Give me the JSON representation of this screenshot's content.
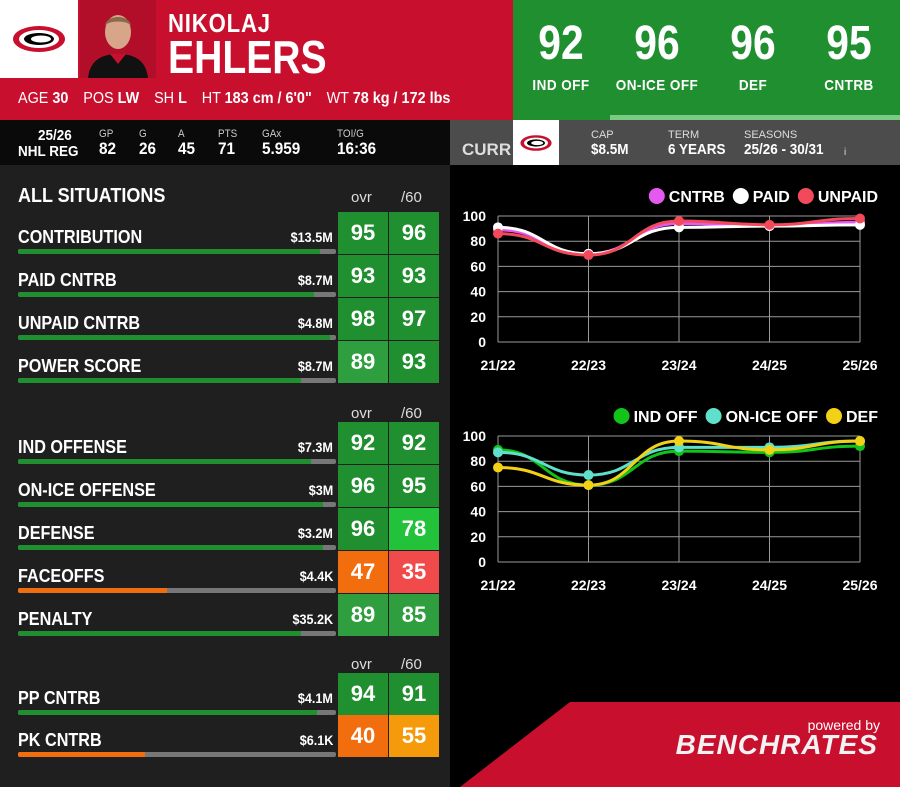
{
  "player": {
    "first_name": "NIKOLAJ",
    "last_name": "EHLERS",
    "bio": [
      {
        "label": "AGE",
        "value": "30"
      },
      {
        "label": "POS",
        "value": "LW"
      },
      {
        "label": "SH",
        "value": "L"
      },
      {
        "label": "HT",
        "value": "183 cm / 6'0\""
      },
      {
        "label": "WT",
        "value": "78 kg / 172 lbs"
      }
    ]
  },
  "top_ratings": [
    {
      "value": "92",
      "label": "IND OFF"
    },
    {
      "value": "96",
      "label": "ON-ICE OFF"
    },
    {
      "value": "96",
      "label": "DEF"
    },
    {
      "value": "95",
      "label": "CNTRB"
    }
  ],
  "season_stats": {
    "season": "25/26",
    "league": "NHL REG",
    "gp_h": "GP",
    "gp": "82",
    "g_h": "G",
    "g": "26",
    "a_h": "A",
    "a": "45",
    "pts_h": "PTS",
    "pts": "71",
    "gax_h": "GAx",
    "gax": "5.959",
    "toi_h": "TOI/G",
    "toi": "16:36"
  },
  "contract": {
    "curr_label": "CURR",
    "cap_h": "CAP",
    "cap": "$8.5M",
    "term_h": "TERM",
    "term": "6 YEARS",
    "seasons_h": "SEASONS",
    "seasons": "25/26 - 30/31",
    "info": "i"
  },
  "situations": {
    "title": "ALL SITUATIONS",
    "col_ovr": "ovr",
    "col_per60": "/60",
    "groups": [
      {
        "rows": [
          {
            "name": "CONTRIBUTION",
            "money": "$13.5M",
            "bar": 0.95,
            "ovr": "95",
            "per60": "96",
            "c1": "#1f8f2f",
            "c2": "#1f8f2f"
          },
          {
            "name": "PAID CNTRB",
            "money": "$8.7M",
            "bar": 0.93,
            "ovr": "93",
            "per60": "93",
            "c1": "#1f8f2f",
            "c2": "#1f8f2f"
          },
          {
            "name": "UNPAID CNTRB",
            "money": "$4.8M",
            "bar": 0.98,
            "ovr": "98",
            "per60": "97",
            "c1": "#1f8f2f",
            "c2": "#1f8f2f"
          },
          {
            "name": "POWER SCORE",
            "money": "$8.7M",
            "bar": 0.89,
            "ovr": "89",
            "per60": "93",
            "c1": "#2e9e3e",
            "c2": "#1f8f2f"
          }
        ]
      },
      {
        "rows": [
          {
            "name": "IND OFFENSE",
            "money": "$7.3M",
            "bar": 0.92,
            "ovr": "92",
            "per60": "92",
            "c1": "#1f8f2f",
            "c2": "#1f8f2f"
          },
          {
            "name": "ON-ICE OFFENSE",
            "money": "$3M",
            "bar": 0.96,
            "ovr": "96",
            "per60": "95",
            "c1": "#1f8f2f",
            "c2": "#1f8f2f"
          },
          {
            "name": "DEFENSE",
            "money": "$3.2M",
            "bar": 0.96,
            "ovr": "96",
            "per60": "78",
            "c1": "#1f8f2f",
            "c2": "#22c23a"
          },
          {
            "name": "FACEOFFS",
            "money": "$4.4K",
            "bar": 0.47,
            "ovr": "47",
            "per60": "35",
            "c1": "#f26d0e",
            "c2": "#f04a4a"
          },
          {
            "name": "PENALTY",
            "money": "$35.2K",
            "bar": 0.89,
            "ovr": "89",
            "per60": "85",
            "c1": "#2e9e3e",
            "c2": "#2e9e3e"
          }
        ]
      },
      {
        "rows": [
          {
            "name": "PP CNTRB",
            "money": "$4.1M",
            "bar": 0.94,
            "ovr": "94",
            "per60": "91",
            "c1": "#1f8f2f",
            "c2": "#1f8f2f"
          },
          {
            "name": "PK CNTRB",
            "money": "$6.1K",
            "bar": 0.4,
            "ovr": "40",
            "per60": "55",
            "c1": "#f26d0e",
            "c2": "#f59a0a"
          }
        ]
      }
    ]
  },
  "chart_data": [
    {
      "type": "line",
      "x": [
        "21/22",
        "22/23",
        "23/24",
        "24/25",
        "25/26"
      ],
      "ylim": [
        0,
        100
      ],
      "yticks": [
        0,
        20,
        40,
        60,
        80,
        100
      ],
      "grid": true,
      "legend": "top-right",
      "series": [
        {
          "name": "CNTRB",
          "color": "#e659f0",
          "values": [
            89,
            70,
            94,
            92,
            95
          ]
        },
        {
          "name": "PAID",
          "color": "#ffffff",
          "values": [
            91,
            70,
            91,
            92,
            93
          ]
        },
        {
          "name": "UNPAID",
          "color": "#f24a5a",
          "values": [
            86,
            69,
            96,
            93,
            98
          ]
        }
      ]
    },
    {
      "type": "line",
      "x": [
        "21/22",
        "22/23",
        "23/24",
        "24/25",
        "25/26"
      ],
      "ylim": [
        0,
        100
      ],
      "yticks": [
        0,
        20,
        40,
        60,
        80,
        100
      ],
      "grid": true,
      "legend": "top-right",
      "series": [
        {
          "name": "IND OFF",
          "color": "#12c41a",
          "values": [
            89,
            61,
            88,
            87,
            92
          ]
        },
        {
          "name": "ON-ICE OFF",
          "color": "#5ee0cc",
          "values": [
            87,
            69,
            91,
            91,
            96
          ]
        },
        {
          "name": "DEF",
          "color": "#f2d116",
          "values": [
            75,
            61,
            96,
            89,
            96
          ]
        }
      ]
    }
  ],
  "footer": {
    "powered_by": "powered by",
    "brand": "BENCHRATES"
  }
}
